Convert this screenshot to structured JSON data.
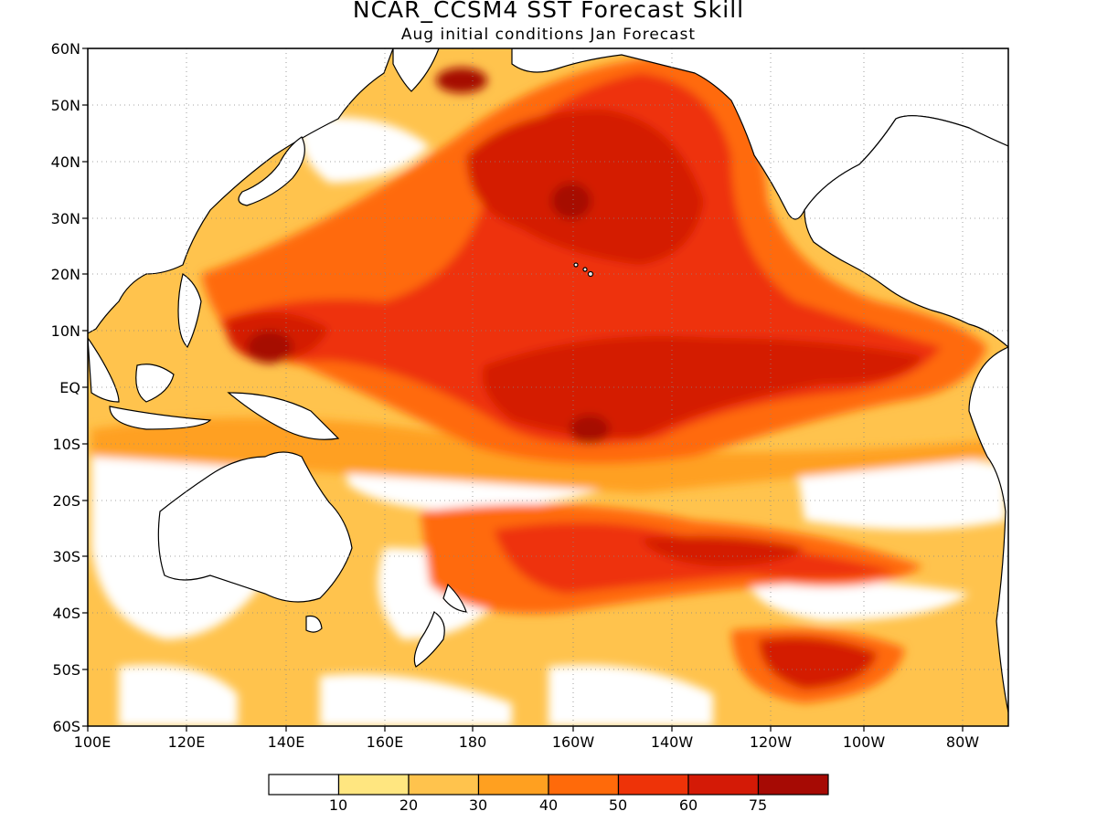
{
  "title": "NCAR_CCSM4 SST Forecast Skill",
  "subtitle": "Aug initial conditions  Jan Forecast",
  "lat_labels": [
    "60N",
    "50N",
    "40N",
    "30N",
    "20N",
    "10N",
    "EQ",
    "10S",
    "20S",
    "30S",
    "40S",
    "50S",
    "60S"
  ],
  "lon_labels": [
    "100E",
    "120E",
    "140E",
    "160E",
    "180",
    "160W",
    "140W",
    "120W",
    "100W",
    "80W"
  ],
  "colorbar": {
    "colors": [
      "#ffffff",
      "#ffe680",
      "#ffc34d",
      "#ffa020",
      "#ff6a0a",
      "#ee3308",
      "#d41a06",
      "#a60a04"
    ],
    "labels": [
      "10",
      "20",
      "30",
      "40",
      "50",
      "60",
      "75"
    ]
  },
  "regions": {
    "equatorial_pacific_skill": "50-75",
    "western_pacific_warm_pool_skill": ">75",
    "north_pacific_skill": "60-75",
    "southern_ocean_patch_skill": "60-75"
  }
}
